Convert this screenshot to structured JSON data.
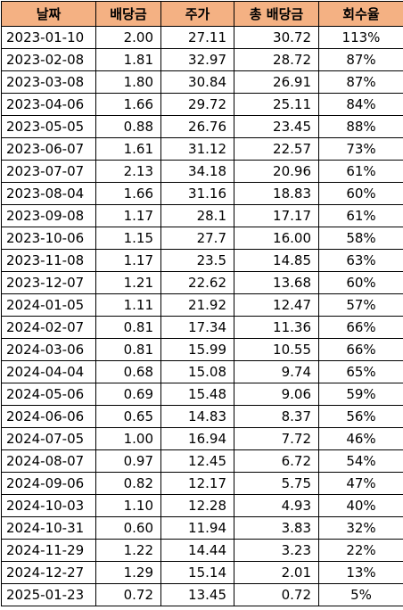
{
  "table": {
    "header": [
      "날짜",
      "배당금",
      "주가",
      "총 배당금",
      "회수율"
    ],
    "rows": [
      [
        "2023-01-10",
        "2.00",
        "27.11",
        "30.72",
        "113%"
      ],
      [
        "2023-02-08",
        "1.81",
        "32.97",
        "28.72",
        "87%"
      ],
      [
        "2023-03-08",
        "1.80",
        "30.84",
        "26.91",
        "87%"
      ],
      [
        "2023-04-06",
        "1.66",
        "29.72",
        "25.11",
        "84%"
      ],
      [
        "2023-05-05",
        "0.88",
        "26.76",
        "23.45",
        "88%"
      ],
      [
        "2023-06-07",
        "1.61",
        "31.12",
        "22.57",
        "73%"
      ],
      [
        "2023-07-07",
        "2.13",
        "34.18",
        "20.96",
        "61%"
      ],
      [
        "2023-08-04",
        "1.66",
        "31.16",
        "18.83",
        "60%"
      ],
      [
        "2023-09-08",
        "1.17",
        "28.1",
        "17.17",
        "61%"
      ],
      [
        "2023-10-06",
        "1.15",
        "27.7",
        "16.00",
        "58%"
      ],
      [
        "2023-11-08",
        "1.17",
        "23.5",
        "14.85",
        "63%"
      ],
      [
        "2023-12-07",
        "1.21",
        "22.62",
        "13.68",
        "60%"
      ],
      [
        "2024-01-05",
        "1.11",
        "21.92",
        "12.47",
        "57%"
      ],
      [
        "2024-02-07",
        "0.81",
        "17.34",
        "11.36",
        "66%"
      ],
      [
        "2024-03-06",
        "0.81",
        "15.99",
        "10.55",
        "66%"
      ],
      [
        "2024-04-04",
        "0.68",
        "15.08",
        "9.74",
        "65%"
      ],
      [
        "2024-05-06",
        "0.69",
        "15.48",
        "9.06",
        "59%"
      ],
      [
        "2024-06-06",
        "0.65",
        "14.83",
        "8.37",
        "56%"
      ],
      [
        "2024-07-05",
        "1.00",
        "16.94",
        "7.72",
        "46%"
      ],
      [
        "2024-08-07",
        "0.97",
        "12.45",
        "6.72",
        "54%"
      ],
      [
        "2024-09-06",
        "0.82",
        "12.17",
        "5.75",
        "47%"
      ],
      [
        "2024-10-03",
        "1.10",
        "12.28",
        "4.93",
        "40%"
      ],
      [
        "2024-10-31",
        "0.60",
        "11.94",
        "3.83",
        "32%"
      ],
      [
        "2024-11-29",
        "1.22",
        "14.44",
        "3.23",
        "22%"
      ],
      [
        "2024-12-27",
        "1.29",
        "15.14",
        "2.01",
        "13%"
      ],
      [
        "2025-01-23",
        "0.72",
        "13.45",
        "0.72",
        "5%"
      ]
    ]
  }
}
